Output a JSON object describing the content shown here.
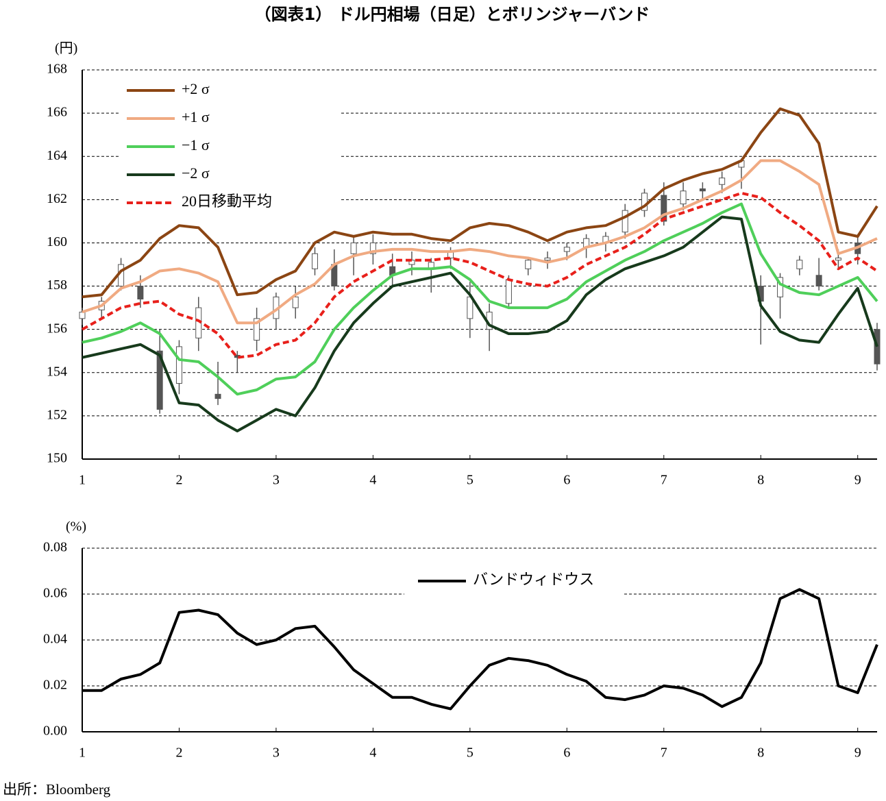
{
  "chart_data": [
    {
      "type": "candlestick",
      "title": "（図表1） ドル円相場（日足）とボリンジャーバンド",
      "y_unit": "(円)",
      "x": [
        1.0,
        1.2,
        1.4,
        1.6,
        1.8,
        2.0,
        2.2,
        2.4,
        2.6,
        2.8,
        3.0,
        3.2,
        3.4,
        3.6,
        3.8,
        4.0,
        4.2,
        4.4,
        4.6,
        4.8,
        5.0,
        5.2,
        5.4,
        5.6,
        5.8,
        6.0,
        6.2,
        6.4,
        6.6,
        6.8,
        7.0,
        7.2,
        7.4,
        7.6,
        7.8,
        8.0,
        8.2,
        8.4,
        8.6,
        8.8,
        9.0,
        9.2
      ],
      "candles": {
        "open": [
          156.5,
          156.9,
          158.0,
          158.0,
          155.0,
          153.5,
          155.6,
          153.0,
          154.8,
          155.5,
          156.5,
          157.0,
          158.8,
          159.0,
          159.5,
          159.5,
          158.9,
          159.0,
          158.8,
          159.3,
          156.5,
          156.0,
          157.2,
          158.8,
          159.2,
          159.6,
          159.8,
          160.0,
          160.5,
          161.5,
          162.2,
          161.8,
          162.5,
          162.7,
          163.5,
          158.0,
          157.5,
          158.8,
          158.5,
          159.2,
          160.0,
          156.0
        ],
        "high": [
          157.0,
          157.5,
          159.3,
          158.5,
          156.0,
          155.5,
          157.5,
          154.5,
          155.0,
          157.0,
          157.7,
          158.0,
          159.8,
          159.7,
          160.3,
          160.4,
          159.5,
          159.6,
          159.3,
          159.8,
          158.2,
          157.2,
          158.5,
          159.3,
          159.6,
          160.0,
          160.4,
          160.5,
          161.8,
          162.5,
          162.8,
          162.8,
          162.8,
          163.3,
          163.9,
          158.5,
          158.6,
          159.4,
          159.3,
          159.7,
          160.4,
          156.3
        ],
        "low": [
          156.2,
          156.5,
          157.8,
          157.0,
          152.1,
          153.0,
          155.0,
          152.5,
          154.0,
          155.0,
          156.0,
          156.5,
          158.5,
          157.8,
          158.5,
          159.0,
          158.0,
          158.5,
          157.7,
          158.8,
          155.6,
          155.0,
          157.0,
          158.5,
          158.8,
          159.2,
          159.3,
          159.6,
          160.2,
          161.2,
          160.8,
          161.5,
          162.0,
          162.3,
          162.5,
          155.3,
          156.5,
          158.5,
          157.8,
          158.8,
          159.0,
          154.1
        ],
        "close": [
          156.8,
          157.3,
          159.0,
          157.4,
          152.3,
          155.2,
          157.0,
          152.8,
          154.7,
          156.5,
          157.5,
          157.5,
          159.5,
          158.0,
          160.0,
          160.0,
          158.5,
          159.2,
          159.1,
          159.6,
          157.5,
          156.8,
          158.3,
          159.2,
          159.3,
          159.8,
          160.2,
          160.3,
          161.5,
          162.3,
          161.0,
          162.4,
          162.4,
          163.0,
          163.8,
          157.3,
          158.4,
          159.2,
          158.0,
          159.3,
          159.5,
          154.4
        ],
        "up_color": "#ffffff",
        "down_color": "#555555",
        "edge_color": "#555555"
      },
      "series": [
        {
          "name": "+2 σ",
          "color": "#8b4513",
          "values": [
            157.5,
            157.6,
            158.7,
            159.2,
            160.2,
            160.8,
            160.7,
            159.8,
            157.6,
            157.7,
            158.3,
            158.7,
            160.0,
            160.5,
            160.3,
            160.5,
            160.4,
            160.4,
            160.2,
            160.1,
            160.7,
            160.9,
            160.8,
            160.5,
            160.1,
            160.5,
            160.7,
            160.8,
            161.2,
            161.7,
            162.5,
            162.9,
            163.2,
            163.4,
            163.8,
            165.1,
            166.2,
            165.9,
            164.6,
            160.5,
            160.3,
            161.7
          ]
        },
        {
          "name": "+1 σ",
          "color": "#f0aa82",
          "values": [
            156.8,
            157.1,
            157.9,
            158.2,
            158.7,
            158.8,
            158.6,
            158.2,
            156.3,
            156.3,
            156.9,
            157.6,
            158.1,
            159.0,
            159.4,
            159.6,
            159.7,
            159.7,
            159.6,
            159.6,
            159.7,
            159.6,
            159.4,
            159.3,
            159.1,
            159.3,
            159.8,
            160.0,
            160.3,
            160.7,
            161.3,
            161.6,
            162.0,
            162.4,
            162.9,
            163.8,
            163.8,
            163.3,
            162.7,
            159.5,
            159.8,
            160.2
          ]
        },
        {
          "name": "−1 σ",
          "color": "#4fcf5a",
          "values": [
            155.4,
            155.6,
            155.9,
            156.3,
            155.8,
            154.6,
            154.5,
            153.8,
            153.0,
            153.2,
            153.7,
            153.8,
            154.5,
            156.0,
            157.0,
            157.8,
            158.5,
            158.8,
            158.8,
            158.9,
            158.3,
            157.3,
            157.0,
            157.0,
            157.0,
            157.4,
            158.2,
            158.7,
            159.2,
            159.6,
            160.1,
            160.5,
            160.9,
            161.4,
            161.8,
            159.5,
            158.1,
            157.7,
            157.6,
            158.0,
            158.4,
            157.3
          ]
        },
        {
          "name": "−2 σ",
          "color": "#173a1c",
          "values": [
            154.7,
            154.9,
            155.1,
            155.3,
            154.8,
            152.6,
            152.5,
            151.8,
            151.3,
            151.8,
            152.3,
            152.0,
            153.3,
            155.0,
            156.3,
            157.2,
            158.0,
            158.2,
            158.4,
            158.6,
            157.6,
            156.2,
            155.8,
            155.8,
            155.9,
            156.4,
            157.6,
            158.3,
            158.8,
            159.1,
            159.4,
            159.8,
            160.5,
            161.2,
            161.1,
            157.1,
            155.9,
            155.5,
            155.4,
            156.7,
            157.9,
            155.2
          ]
        },
        {
          "name": "20日移動平均",
          "color": "#e8201b",
          "dashed": true,
          "values": [
            156.0,
            156.5,
            157.0,
            157.2,
            157.3,
            156.7,
            156.4,
            155.8,
            154.7,
            154.8,
            155.3,
            155.5,
            156.3,
            157.5,
            158.2,
            158.7,
            159.2,
            159.2,
            159.2,
            159.3,
            159.1,
            158.7,
            158.3,
            158.1,
            158.0,
            158.4,
            159.0,
            159.4,
            159.8,
            160.4,
            161.1,
            161.4,
            161.7,
            162.0,
            162.3,
            162.1,
            161.4,
            160.8,
            160.1,
            158.8,
            159.3,
            158.7
          ]
        }
      ],
      "xlim": [
        1,
        9.2
      ],
      "xticks": [
        1,
        2,
        3,
        4,
        5,
        6,
        7,
        8,
        9
      ],
      "ylim": [
        150,
        168
      ],
      "yticks": [
        150,
        152,
        154,
        156,
        158,
        160,
        162,
        164,
        166,
        168
      ],
      "grid": true,
      "legend": "top-left"
    },
    {
      "type": "line",
      "y_unit": "(%)",
      "x": [
        1.0,
        1.2,
        1.4,
        1.6,
        1.8,
        2.0,
        2.2,
        2.4,
        2.6,
        2.8,
        3.0,
        3.2,
        3.4,
        3.6,
        3.8,
        4.0,
        4.2,
        4.4,
        4.6,
        4.8,
        5.0,
        5.2,
        5.4,
        5.6,
        5.8,
        6.0,
        6.2,
        6.4,
        6.6,
        6.8,
        7.0,
        7.2,
        7.4,
        7.6,
        7.8,
        8.0,
        8.2,
        8.4,
        8.6,
        8.8,
        9.0,
        9.2
      ],
      "series": [
        {
          "name": "バンドウィドウス",
          "color": "#000000",
          "values": [
            0.018,
            0.018,
            0.023,
            0.025,
            0.03,
            0.052,
            0.053,
            0.051,
            0.043,
            0.038,
            0.04,
            0.045,
            0.046,
            0.037,
            0.027,
            0.021,
            0.015,
            0.015,
            0.012,
            0.01,
            0.02,
            0.029,
            0.032,
            0.031,
            0.029,
            0.025,
            0.022,
            0.015,
            0.014,
            0.016,
            0.02,
            0.019,
            0.016,
            0.011,
            0.015,
            0.03,
            0.058,
            0.062,
            0.058,
            0.02,
            0.017,
            0.038
          ]
        }
      ],
      "xlim": [
        1,
        9.2
      ],
      "xticks": [
        1,
        2,
        3,
        4,
        5,
        6,
        7,
        8,
        9
      ],
      "ylim": [
        0,
        0.08
      ],
      "yticks": [
        {
          "value": 0,
          "label": "0.00"
        },
        {
          "value": 0.02,
          "label": "0.02"
        },
        {
          "value": 0.04,
          "label": "0.04"
        },
        {
          "value": 0.06,
          "label": "0.06"
        },
        {
          "value": 0.08,
          "label": "0.08"
        }
      ],
      "grid": true,
      "legend": "top-center"
    }
  ],
  "source": "出所：Bloomberg"
}
